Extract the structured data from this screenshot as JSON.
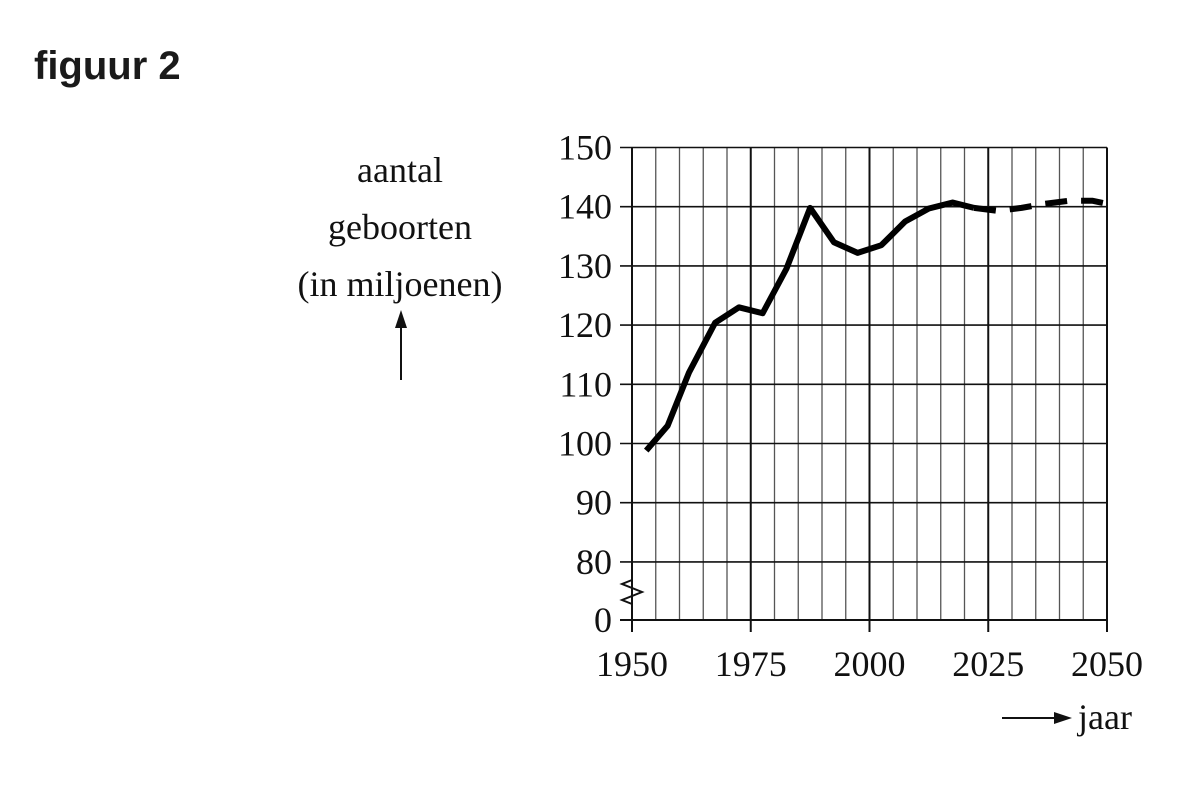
{
  "figure_label": "figuur 2",
  "chart_data": {
    "type": "line",
    "title": "",
    "ylabel": [
      "aantal",
      "geboorten",
      "(in miljoenen)"
    ],
    "xlabel": "jaar",
    "xlim": [
      1950,
      2050
    ],
    "ylim": [
      0,
      150
    ],
    "y_axis_break": [
      0,
      80
    ],
    "x_ticks": [
      "1950",
      "1975",
      "2000",
      "2025",
      "2050"
    ],
    "y_ticks": [
      "0",
      "80",
      "90",
      "100",
      "110",
      "120",
      "130",
      "140",
      "150"
    ],
    "grid": true,
    "series": [
      {
        "style": "solid",
        "x": [
          1953,
          1957.5,
          1962,
          1967.5,
          1972.5,
          1977.5,
          1982.5,
          1987.5,
          1992.5,
          1997.5,
          2002.5,
          2007.5,
          2012.5,
          2017.5,
          2022
        ],
        "y": [
          98.8,
          103,
          112,
          120.4,
          123,
          122,
          129.5,
          139.8,
          134,
          132.2,
          133.5,
          137.5,
          139.7,
          140.7,
          139.8
        ]
      },
      {
        "style": "dashed",
        "x": [
          2022,
          2027,
          2032,
          2037,
          2042,
          2047,
          2050
        ],
        "y": [
          139.8,
          139.3,
          139.8,
          140.5,
          141,
          141,
          140.5
        ]
      }
    ]
  }
}
